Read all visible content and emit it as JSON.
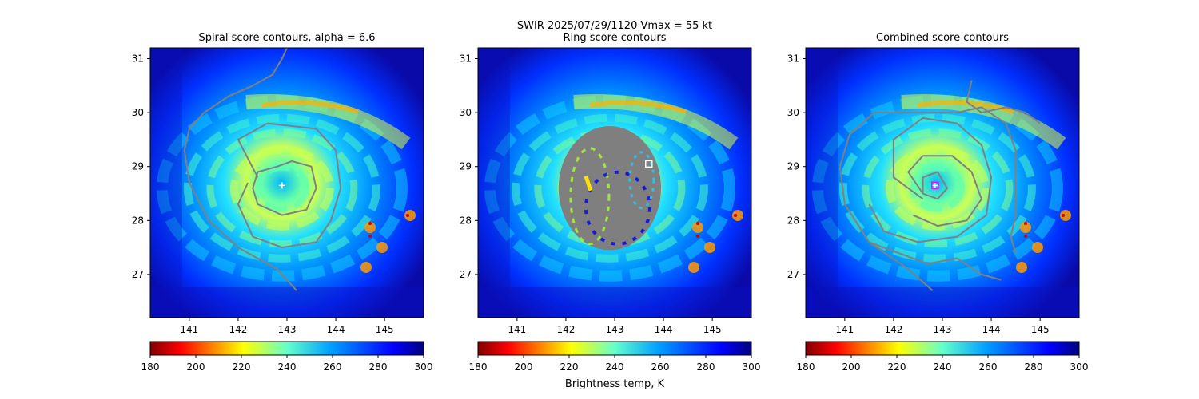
{
  "figure": {
    "suptitle_line1": "SWIR  2025/07/29/1120    Vmax = 55 kt",
    "colorbar_label": "Brightness temp, K"
  },
  "colormap": {
    "name": "jet_r",
    "range": [
      180,
      300
    ],
    "ticks": [
      180,
      200,
      220,
      240,
      260,
      280,
      300
    ]
  },
  "chart_data": [
    {
      "type": "heatmap",
      "title": "Spiral score contours, alpha =  6.6",
      "xlim": [
        140.2,
        145.8
      ],
      "ylim": [
        26.2,
        31.2
      ],
      "xticks": [
        141,
        142,
        143,
        144,
        145
      ],
      "yticks": [
        27,
        28,
        29,
        30,
        31
      ],
      "grid": false,
      "center_marker": {
        "symbol": "plus",
        "color": "#ffffff",
        "lon": 142.9,
        "lat": 28.65
      },
      "contours": [
        [
          [
            142.8,
            29.0
          ],
          [
            142.4,
            28.9
          ],
          [
            142.3,
            28.6
          ],
          [
            142.4,
            28.3
          ],
          [
            142.9,
            28.1
          ],
          [
            143.4,
            28.2
          ],
          [
            143.6,
            28.6
          ],
          [
            143.5,
            29.0
          ],
          [
            143.1,
            29.1
          ],
          [
            142.8,
            29.0
          ]
        ],
        [
          [
            142.4,
            28.8
          ],
          [
            142.0,
            29.5
          ],
          [
            142.6,
            29.8
          ],
          [
            143.6,
            29.7
          ],
          [
            144.0,
            29.3
          ],
          [
            144.1,
            28.6
          ],
          [
            143.9,
            28.0
          ],
          [
            143.6,
            27.6
          ],
          [
            142.9,
            27.5
          ],
          [
            142.3,
            27.7
          ],
          [
            142.0,
            28.3
          ],
          [
            142.2,
            28.7
          ]
        ],
        [
          [
            143.2,
            26.7
          ],
          [
            142.8,
            27.1
          ],
          [
            142.0,
            27.5
          ],
          [
            141.4,
            28.0
          ],
          [
            141.0,
            28.7
          ],
          [
            140.9,
            29.3
          ],
          [
            141.0,
            29.7
          ],
          [
            141.3,
            30.0
          ],
          [
            141.8,
            30.3
          ],
          [
            142.3,
            30.5
          ],
          [
            142.7,
            30.7
          ],
          [
            142.9,
            31.0
          ],
          [
            143.0,
            31.2
          ]
        ]
      ]
    },
    {
      "type": "heatmap",
      "title": "Ring score contours",
      "xlim": [
        140.2,
        145.8
      ],
      "ylim": [
        26.2,
        31.2
      ],
      "xticks": [
        141,
        142,
        143,
        144,
        145
      ],
      "yticks": [
        27,
        28,
        29,
        30,
        31
      ],
      "grid": false,
      "center_marker": {
        "symbol": "square",
        "color": "#ffffff",
        "lon": 143.7,
        "lat": 29.05
      },
      "ring_region": {
        "center_lon": 142.9,
        "center_lat": 28.6,
        "radius_lon": 1.05,
        "radius_lat": 1.15
      }
    },
    {
      "type": "heatmap",
      "title": "Combined score contours",
      "xlim": [
        140.2,
        145.8
      ],
      "ylim": [
        26.2,
        31.2
      ],
      "xticks": [
        141,
        142,
        143,
        144,
        145
      ],
      "yticks": [
        27,
        28,
        29,
        30,
        31
      ],
      "grid": false,
      "center_marker": {
        "symbol": "square-plus",
        "color": "#ff00ff",
        "lon": 142.85,
        "lat": 28.65
      },
      "contours": [
        [
          [
            142.9,
            28.9
          ],
          [
            142.6,
            28.8
          ],
          [
            142.6,
            28.5
          ],
          [
            142.9,
            28.4
          ],
          [
            143.1,
            28.6
          ],
          [
            142.9,
            28.9
          ]
        ],
        [
          [
            142.6,
            28.5
          ],
          [
            142.3,
            28.9
          ],
          [
            142.6,
            29.2
          ],
          [
            143.2,
            29.2
          ],
          [
            143.6,
            28.9
          ],
          [
            143.8,
            28.4
          ],
          [
            143.5,
            28.0
          ],
          [
            142.9,
            27.9
          ],
          [
            142.4,
            28.1
          ]
        ],
        [
          [
            142.6,
            28.4
          ],
          [
            142.0,
            28.8
          ],
          [
            142.0,
            29.5
          ],
          [
            142.6,
            29.9
          ],
          [
            143.3,
            29.8
          ],
          [
            143.8,
            29.4
          ],
          [
            144.0,
            28.8
          ],
          [
            143.9,
            28.1
          ],
          [
            143.3,
            27.7
          ],
          [
            142.5,
            27.6
          ],
          [
            141.8,
            27.8
          ],
          [
            141.5,
            28.3
          ]
        ],
        [
          [
            142.8,
            26.7
          ],
          [
            142.3,
            27.1
          ],
          [
            141.5,
            27.6
          ],
          [
            141.0,
            28.3
          ],
          [
            140.9,
            29.0
          ],
          [
            141.1,
            29.6
          ],
          [
            141.6,
            30.0
          ],
          [
            142.5,
            30.0
          ],
          [
            143.3,
            30.0
          ],
          [
            143.8,
            30.1
          ],
          [
            144.3,
            29.8
          ],
          [
            144.5,
            29.3
          ],
          [
            144.5,
            28.7
          ],
          [
            144.5,
            28.1
          ],
          [
            144.4,
            27.7
          ],
          [
            144.5,
            27.4
          ]
        ],
        [
          [
            141.5,
            27.6
          ],
          [
            142.1,
            27.4
          ],
          [
            142.7,
            27.2
          ],
          [
            143.3,
            27.3
          ],
          [
            143.8,
            27.0
          ],
          [
            144.2,
            26.9
          ]
        ],
        [
          [
            143.6,
            30.6
          ],
          [
            143.5,
            30.2
          ],
          [
            143.8,
            30.0
          ],
          [
            144.3,
            30.1
          ],
          [
            144.7,
            30.0
          ],
          [
            145.0,
            29.8
          ]
        ]
      ]
    }
  ]
}
